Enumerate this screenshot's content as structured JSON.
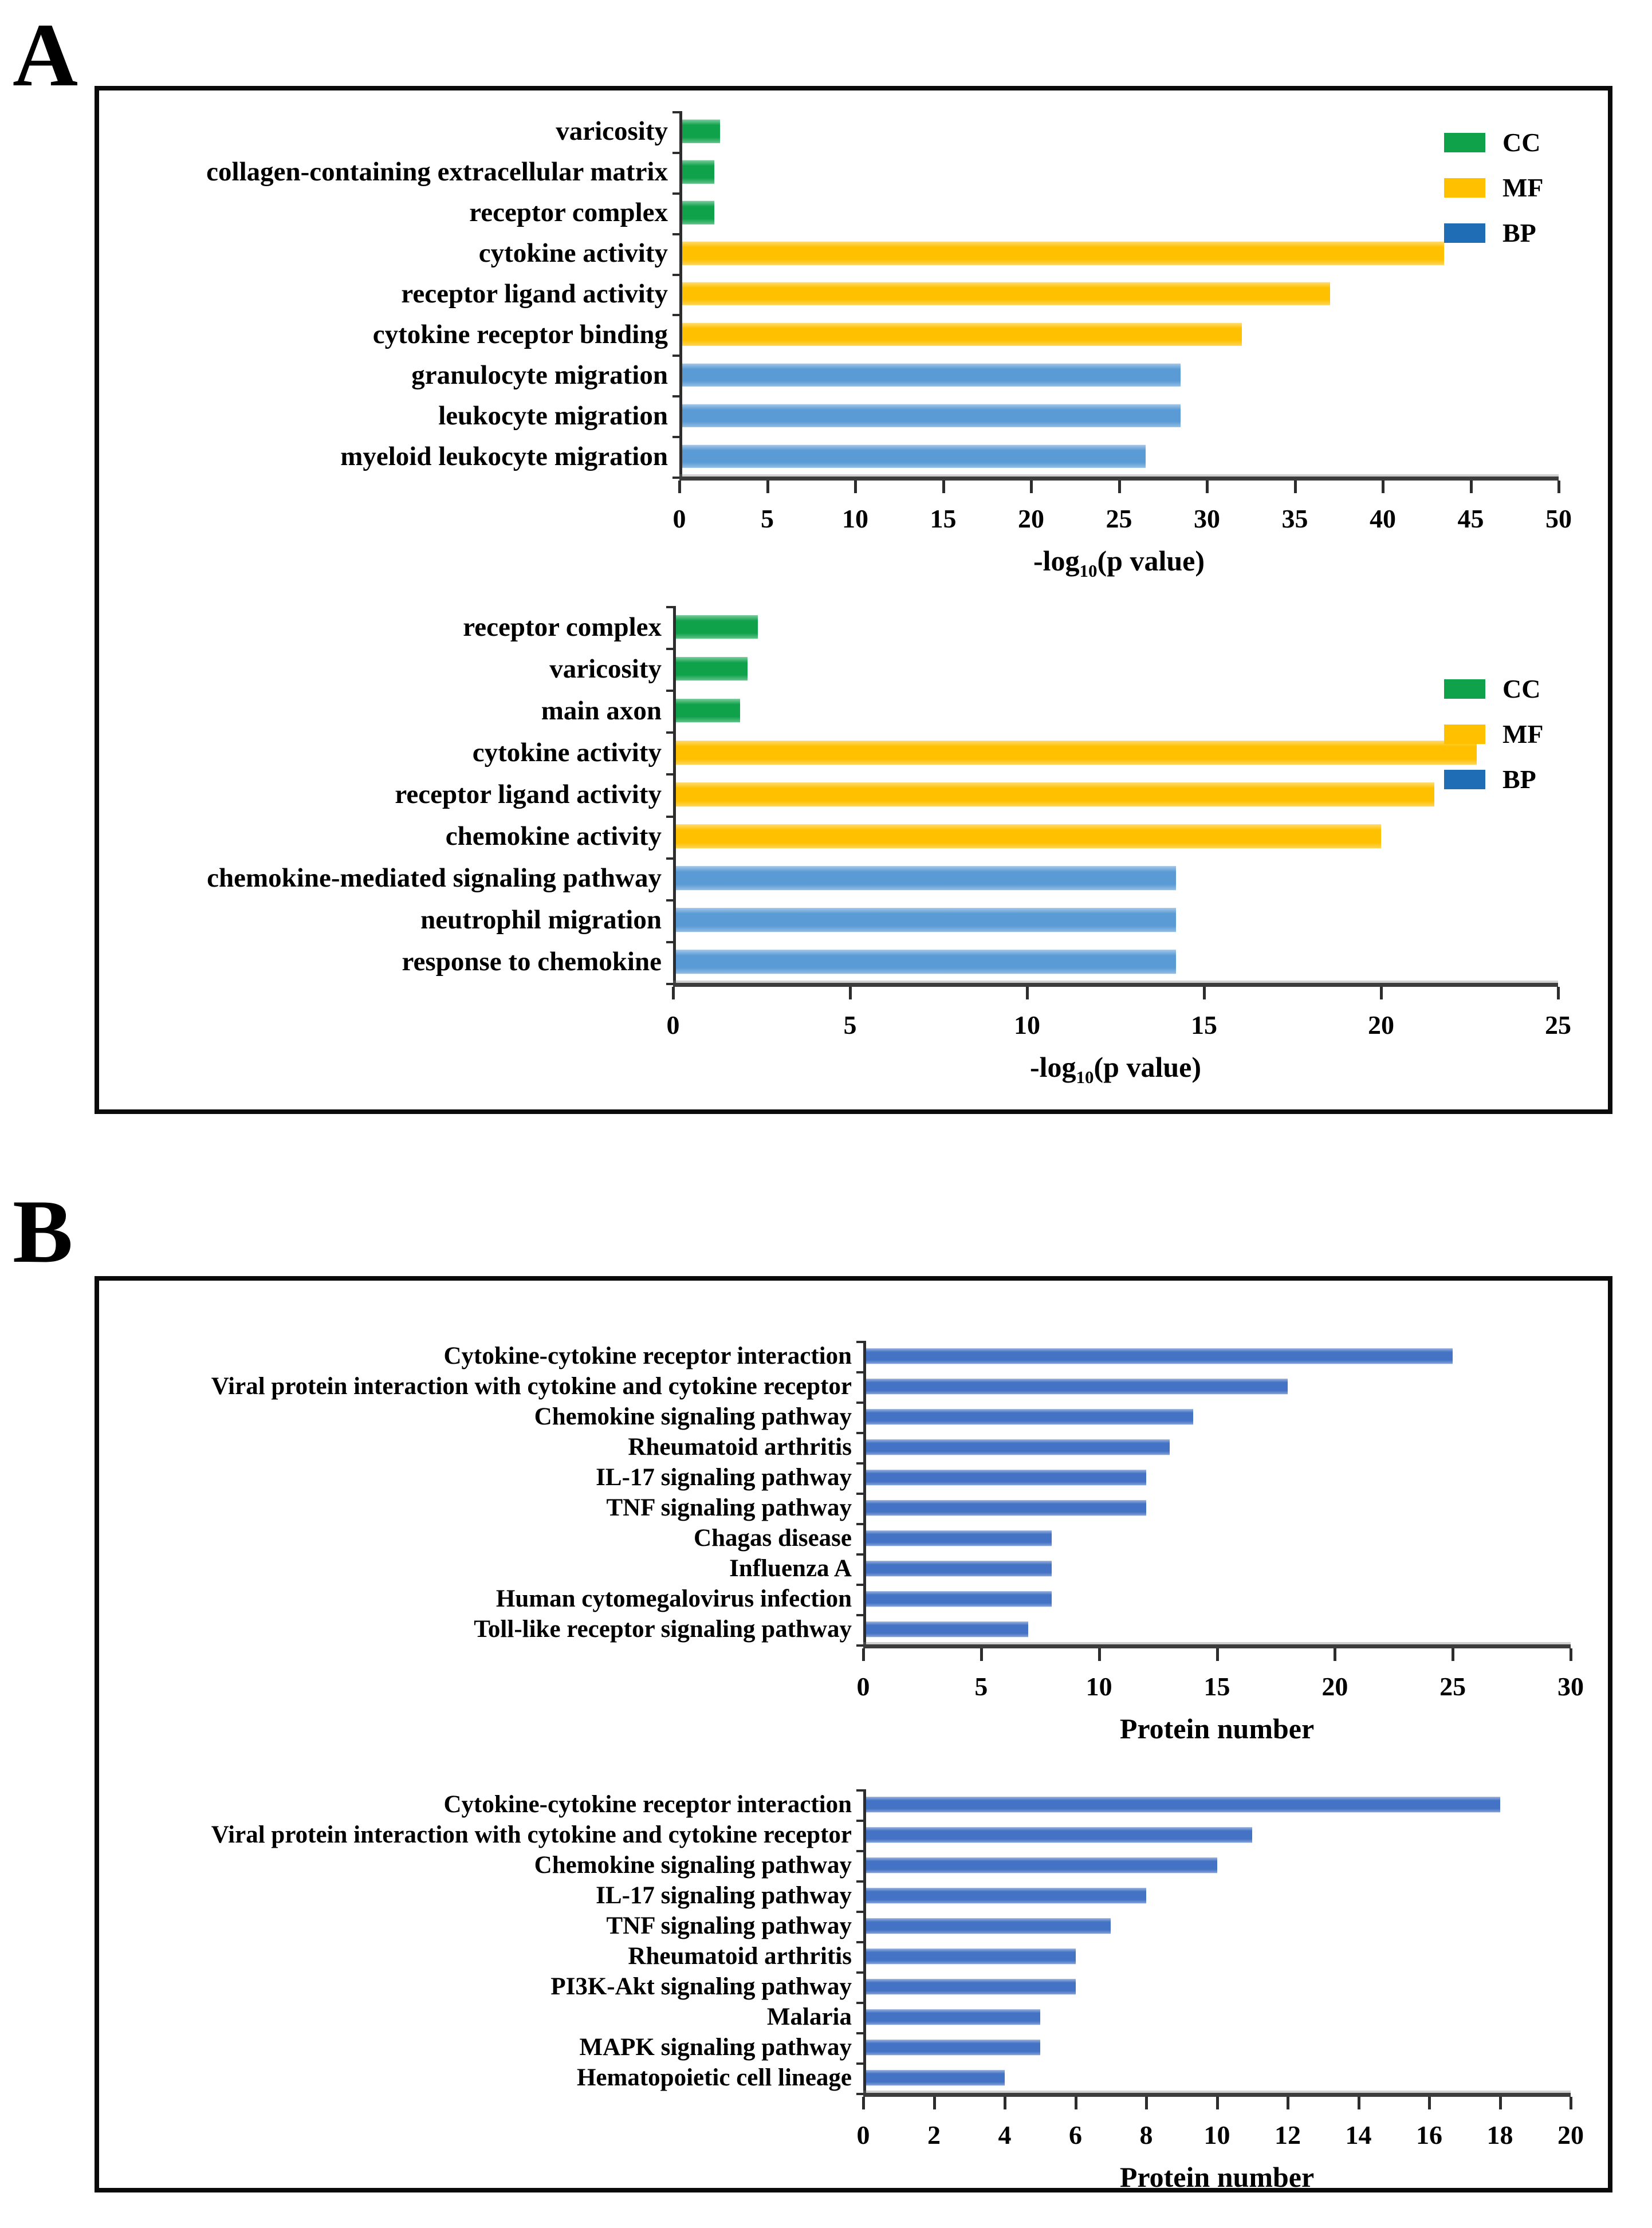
{
  "panels": {
    "a": {
      "label": "A"
    },
    "b": {
      "label": "B"
    }
  },
  "colors": {
    "cc_green": "#0FA24B",
    "mf_gold": "#FFC000",
    "bp_bar_light_blue": "#5B9BD5",
    "bp_legend_blue": "#1F6EB5",
    "kegg_bar_blue": "#4472C4",
    "axis_line": "#3C3C3C",
    "panel_border": "#0A0A0A"
  },
  "chart_data": [
    {
      "id": "a1",
      "type": "bar",
      "orientation": "horizontal",
      "title": "",
      "xlabel_parts": {
        "pre": "-log",
        "sub": "10",
        "post": "(p value)"
      },
      "xlim": [
        0,
        50
      ],
      "xtick_step": 5,
      "grid": false,
      "legend_position": "top-right",
      "categories": [
        "varicosity",
        "collagen-containing extracellular matrix",
        "receptor complex",
        "cytokine activity",
        "receptor ligand activity",
        "cytokine receptor binding",
        "granulocyte migration",
        "leukocyte migration",
        "myeloid leukocyte migration"
      ],
      "values": [
        2.3,
        2.0,
        2.0,
        43.5,
        37,
        32,
        28.5,
        28.5,
        26.5
      ],
      "groups": [
        "CC",
        "CC",
        "CC",
        "MF",
        "MF",
        "MF",
        "BP",
        "BP",
        "BP"
      ],
      "group_colors": {
        "CC": "#0FA24B",
        "MF": "#FFC000",
        "BP": "#5B9BD5"
      },
      "legend": [
        {
          "label": "CC",
          "color": "#0FA24B"
        },
        {
          "label": "MF",
          "color": "#FFC000"
        },
        {
          "label": "BP",
          "color": "#1F6EB5"
        }
      ]
    },
    {
      "id": "a2",
      "type": "bar",
      "orientation": "horizontal",
      "title": "",
      "xlabel_parts": {
        "pre": "-log",
        "sub": "10",
        "post": "(p value)"
      },
      "xlim": [
        0,
        25
      ],
      "xtick_step": 5,
      "grid": false,
      "legend_position": "top-right",
      "categories": [
        "receptor complex",
        "varicosity",
        "main axon",
        "cytokine activity",
        "receptor ligand activity",
        "chemokine activity",
        "chemokine-mediated signaling pathway",
        "neutrophil migration",
        "response to chemokine"
      ],
      "values": [
        2.4,
        2.1,
        1.9,
        22.7,
        21.5,
        20.0,
        14.2,
        14.2,
        14.2
      ],
      "groups": [
        "CC",
        "CC",
        "CC",
        "MF",
        "MF",
        "MF",
        "BP",
        "BP",
        "BP"
      ],
      "group_colors": {
        "CC": "#0FA24B",
        "MF": "#FFC000",
        "BP": "#5B9BD5"
      },
      "legend": [
        {
          "label": "CC",
          "color": "#0FA24B"
        },
        {
          "label": "MF",
          "color": "#FFC000"
        },
        {
          "label": "BP",
          "color": "#1F6EB5"
        }
      ]
    },
    {
      "id": "b1",
      "type": "bar",
      "orientation": "horizontal",
      "title": "",
      "xlabel_parts": {
        "pre": "Protein number",
        "sub": "",
        "post": ""
      },
      "xlim": [
        0,
        30
      ],
      "xtick_step": 5,
      "grid": false,
      "categories": [
        "Cytokine-cytokine receptor interaction",
        "Viral protein interaction with cytokine and cytokine receptor",
        "Chemokine signaling pathway",
        "Rheumatoid arthritis",
        "IL-17 signaling pathway",
        "TNF signaling pathway",
        "Chagas disease",
        "Influenza A",
        "Human cytomegalovirus infection",
        "Toll-like receptor signaling pathway"
      ],
      "values": [
        25,
        18,
        14,
        13,
        12,
        12,
        8,
        8,
        8,
        7
      ],
      "bar_color": "#4472C4"
    },
    {
      "id": "b2",
      "type": "bar",
      "orientation": "horizontal",
      "title": "",
      "xlabel_parts": {
        "pre": "Protein number",
        "sub": "",
        "post": ""
      },
      "xlim": [
        0,
        20
      ],
      "xtick_step": 2,
      "grid": false,
      "categories": [
        "Cytokine-cytokine receptor interaction",
        "Viral protein interaction with cytokine and cytokine receptor",
        "Chemokine signaling pathway",
        "IL-17 signaling pathway",
        "TNF signaling pathway",
        "Rheumatoid arthritis",
        "PI3K-Akt signaling pathway",
        "Malaria",
        "MAPK signaling pathway",
        "Hematopoietic cell lineage"
      ],
      "values": [
        18,
        11,
        10,
        8,
        7,
        6,
        6,
        5,
        5,
        4
      ],
      "bar_color": "#4472C4"
    }
  ]
}
